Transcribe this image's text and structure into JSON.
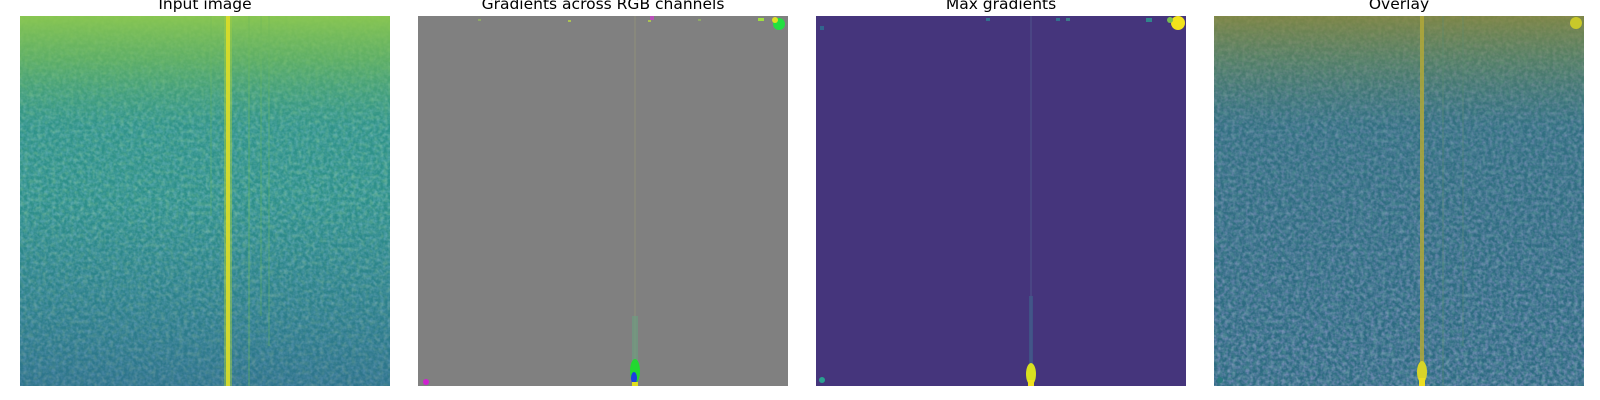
{
  "figure": {
    "panels": [
      {
        "key": "input",
        "title": "Input image",
        "content": "spectrogram-like noisy texture in viridis colormap, bright band at top, bright vertical line near center",
        "colors": {
          "base": "#2a8a8a",
          "dark": "#3b4f8a",
          "bright": "#b8d43a",
          "top": "#7ec25a",
          "line": "#e8e020"
        }
      },
      {
        "key": "gradients",
        "title": "Gradients across RGB channels",
        "content": "mostly flat gray with colored specks along top edge and a bright spot at the bottom of a faint vertical line",
        "colors": {
          "base": "#808080",
          "line": "#8f8f80",
          "spot_green": "#22e020",
          "spot_blue": "#1030e0",
          "spot_magenta": "#e020e0"
        }
      },
      {
        "key": "max",
        "title": "Max gradients",
        "content": "uniform dark indigo with bright yellow-green spots along the top edge and at the bottom of a faint vertical line",
        "colors": {
          "base": "#45357c",
          "line": "#4a4a84",
          "spot": "#e8e020",
          "spot_teal": "#20a090"
        }
      },
      {
        "key": "overlay",
        "title": "Overlay",
        "content": "input image blended with max gradient map, darker blue-green tone",
        "colors": {
          "base": "#2c6a80",
          "dark": "#3a4580",
          "top": "#6a8a50",
          "line": "#a8a830",
          "spot": "#e8e020"
        }
      }
    ]
  }
}
